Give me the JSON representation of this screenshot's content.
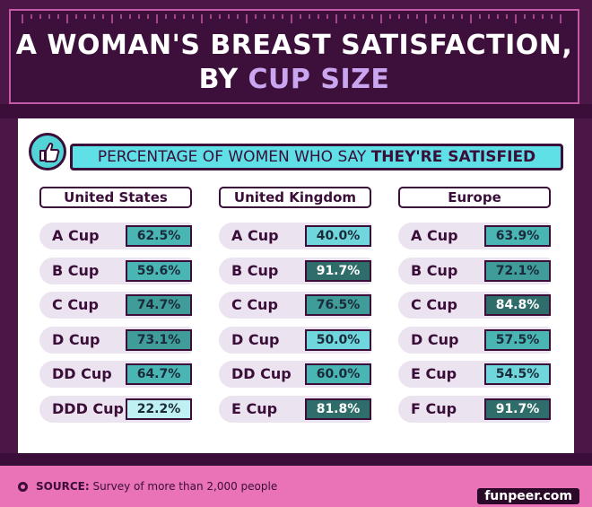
{
  "title": {
    "line1": "A WOMAN'S BREAST SATISFACTION,",
    "line2_prefix": "BY ",
    "line2_highlight": "CUP SIZE"
  },
  "subtitle": {
    "prefix": "PERCENTAGE OF WOMEN WHO SAY ",
    "bold": "THEY'RE SATISFIED"
  },
  "source": {
    "label": "SOURCE:",
    "text": " Survey of more than 2,000 people"
  },
  "watermark": "funpeer.com",
  "colors": {
    "background": "#4a1747",
    "accent": "#c9a6ef",
    "teal": "#5ee0e6",
    "source_bar": "#ea72b6"
  },
  "chart_data": {
    "type": "table",
    "unit": "%",
    "columns": [
      {
        "name": "United States",
        "rows": [
          {
            "label": "A Cup",
            "display": "62.5%",
            "value": 62.5
          },
          {
            "label": "B Cup",
            "display": "59.6%",
            "value": 59.6
          },
          {
            "label": "C Cup",
            "display": "74.7%",
            "value": 74.7
          },
          {
            "label": "D Cup",
            "display": "73.1%",
            "value": 73.1
          },
          {
            "label": "DD Cup",
            "display": "64.7%",
            "value": 64.7
          },
          {
            "label": "DDD Cup",
            "display": "22.2%",
            "value": 22.2
          }
        ]
      },
      {
        "name": "United Kingdom",
        "rows": [
          {
            "label": "A Cup",
            "display": "40.0%",
            "value": 40.0
          },
          {
            "label": "B Cup",
            "display": "91.7%",
            "value": 91.7
          },
          {
            "label": "C Cup",
            "display": "76.5%",
            "value": 76.5
          },
          {
            "label": "D Cup",
            "display": "50.0%",
            "value": 50.0
          },
          {
            "label": "DD Cup",
            "display": "60.0%",
            "value": 60.0
          },
          {
            "label": "E Cup",
            "display": "81.8%",
            "value": 81.8
          }
        ]
      },
      {
        "name": "Europe",
        "rows": [
          {
            "label": "A Cup",
            "display": "63.9%",
            "value": 63.9
          },
          {
            "label": "B Cup",
            "display": "72.1%",
            "value": 72.1
          },
          {
            "label": "C Cup",
            "display": "84.8%",
            "value": 84.8
          },
          {
            "label": "D Cup",
            "display": "57.5%",
            "value": 57.5
          },
          {
            "label": "E Cup",
            "display": "54.5%",
            "value": 54.5
          },
          {
            "label": "F Cup",
            "display": "91.7%",
            "value": 91.7
          }
        ]
      }
    ]
  }
}
